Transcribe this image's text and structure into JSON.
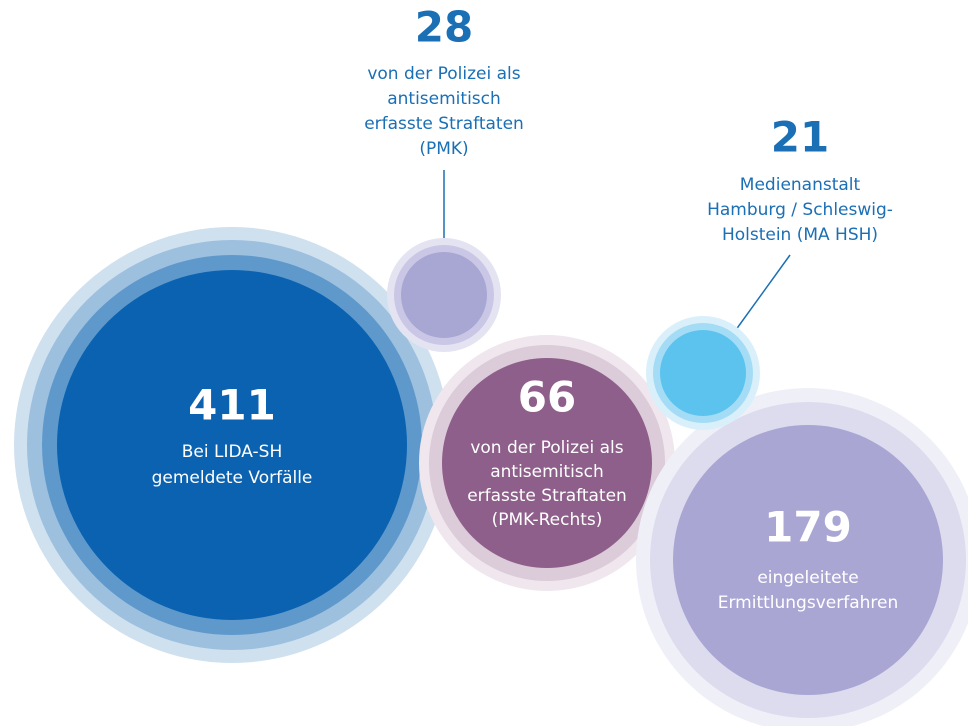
{
  "bubbles": [
    {
      "value": 411,
      "label": [
        "Bei LIDA-SH",
        "gemeldete Vorfälle"
      ]
    },
    {
      "value": 66,
      "label": [
        "von der Polizei als",
        "antisemitisch",
        "erfasste Straftaten",
        "(PMK-Rechts)"
      ]
    },
    {
      "value": 179,
      "label": [
        "eingeleitete",
        "Ermittlungsverfahren"
      ]
    },
    {
      "value": 28,
      "label": [
        "von der Polizei als",
        "antisemitisch",
        "erfasste Straftaten",
        "(PMK)"
      ]
    },
    {
      "value": 21,
      "label": [
        "Medienanstalt",
        "Hamburg / Schleswig-",
        "Holstein (MA HSH)"
      ]
    }
  ]
}
